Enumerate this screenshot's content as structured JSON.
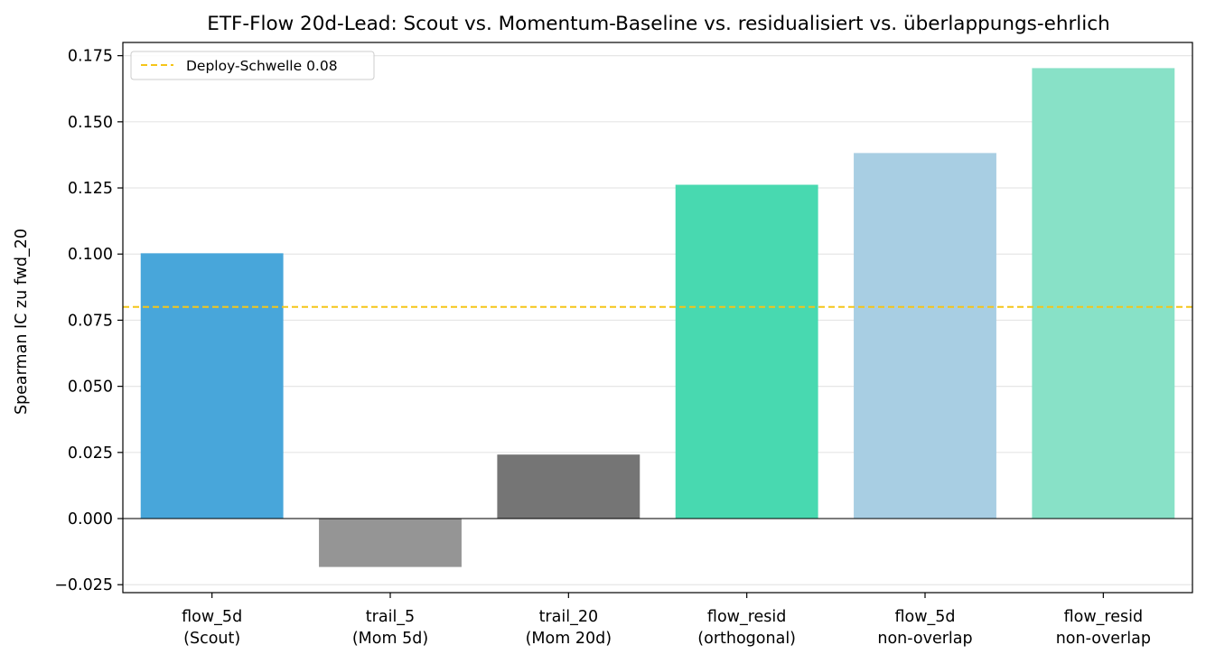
{
  "chart_data": {
    "type": "bar",
    "title": "ETF-Flow 20d-Lead: Scout vs. Momentum-Baseline vs. residualisiert vs. überlappungs-ehrlich",
    "xlabel": "",
    "ylabel": "Spearman IC zu fwd_20",
    "categories": [
      [
        "flow_5d",
        "(Scout)"
      ],
      [
        "trail_5",
        "(Mom 5d)"
      ],
      [
        "trail_20",
        "(Mom 20d)"
      ],
      [
        "flow_resid",
        "(orthogonal)"
      ],
      [
        "flow_5d",
        "non-overlap"
      ],
      [
        "flow_resid",
        "non-overlap"
      ]
    ],
    "values": [
      0.1003,
      -0.0183,
      0.0242,
      0.1262,
      0.1382,
      0.1703
    ],
    "colors": [
      "#48a6da",
      "#959595",
      "#757575",
      "#48d9b0",
      "#a8cee3",
      "#88e1c7"
    ],
    "ylim": [
      -0.028,
      0.18
    ],
    "yticks": [
      -0.025,
      0.0,
      0.025,
      0.05,
      0.075,
      0.1,
      0.125,
      0.15,
      0.175
    ],
    "ytick_labels": [
      "−0.025",
      "0.000",
      "0.025",
      "0.050",
      "0.075",
      "0.100",
      "0.125",
      "0.150",
      "0.175"
    ],
    "threshold": {
      "value": 0.08,
      "label": "Deploy-Schwelle 0.08",
      "color": "#f5c518",
      "style": "dashed"
    },
    "grid": "y",
    "legend_position": "top-left"
  }
}
